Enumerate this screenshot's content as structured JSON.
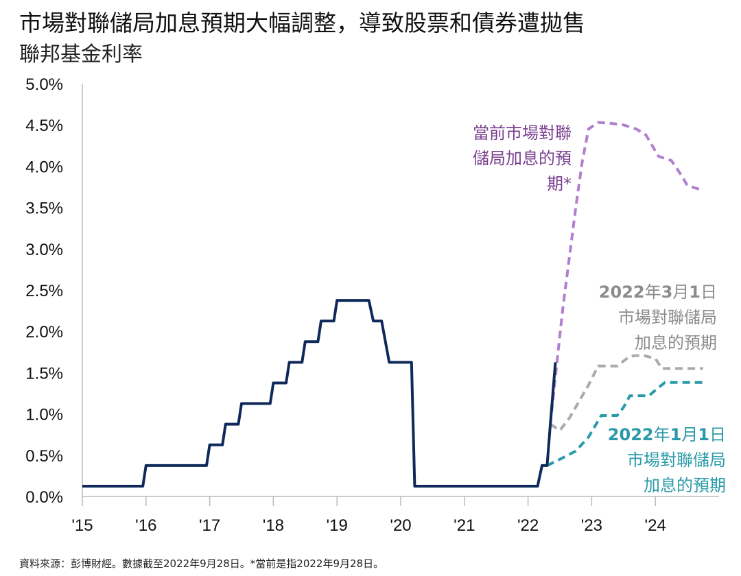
{
  "title": "市場對聯儲局加息預期大幅調整，導致股票和債券遭拋售",
  "subtitle": "聯邦基金利率",
  "source": "資料來源：彭博財經。數據截至2022年9月28日。*當前是指2022年9月28日。",
  "colors": {
    "actual": "#0f2a5a",
    "current_expectation": "#b07fd0",
    "mar_expectation": "#aaaaaa",
    "jan_expectation": "#2a9aa8",
    "axis": "#bbbbbb"
  },
  "chart_data": {
    "type": "line",
    "x_unit": "year",
    "xlim": [
      2015,
      2025
    ],
    "ylim": [
      0,
      5
    ],
    "y_ticks": [
      0,
      0.5,
      1,
      1.5,
      2,
      2.5,
      3,
      3.5,
      4,
      4.5,
      5
    ],
    "y_tick_labels": [
      "0.0%",
      "0.5%",
      "1.0%",
      "1.5%",
      "2.0%",
      "2.5%",
      "3.0%",
      "3.5%",
      "4.0%",
      "4.5%",
      "5.0%"
    ],
    "x_ticks": [
      2015,
      2016,
      2017,
      2018,
      2019,
      2020,
      2021,
      2022,
      2023,
      2024
    ],
    "x_tick_labels": [
      "'15",
      "'16",
      "'17",
      "'18",
      "'19",
      "'20",
      "'21",
      "'22",
      "'23",
      "'24"
    ],
    "grid": false,
    "series": [
      {
        "id": "actual",
        "style": "solid",
        "points": [
          [
            2015.0,
            0.125
          ],
          [
            2015.95,
            0.125
          ],
          [
            2016.0,
            0.375
          ],
          [
            2016.95,
            0.375
          ],
          [
            2017.0,
            0.625
          ],
          [
            2017.2,
            0.625
          ],
          [
            2017.25,
            0.875
          ],
          [
            2017.45,
            0.875
          ],
          [
            2017.5,
            1.125
          ],
          [
            2017.95,
            1.125
          ],
          [
            2018.0,
            1.375
          ],
          [
            2018.2,
            1.375
          ],
          [
            2018.25,
            1.625
          ],
          [
            2018.45,
            1.625
          ],
          [
            2018.5,
            1.875
          ],
          [
            2018.7,
            1.875
          ],
          [
            2018.75,
            2.125
          ],
          [
            2018.95,
            2.125
          ],
          [
            2019.0,
            2.375
          ],
          [
            2019.5,
            2.375
          ],
          [
            2019.57,
            2.125
          ],
          [
            2019.7,
            2.125
          ],
          [
            2019.82,
            1.625
          ],
          [
            2020.17,
            1.625
          ],
          [
            2020.22,
            0.125
          ],
          [
            2022.15,
            0.125
          ],
          [
            2022.22,
            0.375
          ],
          [
            2022.3,
            0.375
          ],
          [
            2022.35,
            0.875
          ],
          [
            2022.43,
            1.625
          ]
        ]
      },
      {
        "id": "current",
        "name": "當前市場對聯儲局加息的預期*",
        "style": "dashed",
        "points": [
          [
            2022.35,
            0.875
          ],
          [
            2022.45,
            1.6
          ],
          [
            2022.55,
            2.3
          ],
          [
            2022.65,
            2.9
          ],
          [
            2022.75,
            3.5
          ],
          [
            2022.85,
            4.05
          ],
          [
            2022.95,
            4.45
          ],
          [
            2023.1,
            4.53
          ],
          [
            2023.3,
            4.52
          ],
          [
            2023.5,
            4.5
          ],
          [
            2023.7,
            4.45
          ],
          [
            2023.85,
            4.38
          ],
          [
            2024.05,
            4.12
          ],
          [
            2024.25,
            4.07
          ],
          [
            2024.4,
            3.9
          ],
          [
            2024.5,
            3.77
          ],
          [
            2024.65,
            3.73
          ],
          [
            2024.75,
            3.71
          ]
        ]
      },
      {
        "id": "mar",
        "name": "2022年3月1日市場對聯儲局加息的預期",
        "style": "dashed",
        "points": [
          [
            2022.35,
            0.875
          ],
          [
            2022.5,
            0.8
          ],
          [
            2022.65,
            0.95
          ],
          [
            2022.8,
            1.15
          ],
          [
            2022.95,
            1.35
          ],
          [
            2023.1,
            1.58
          ],
          [
            2023.4,
            1.58
          ],
          [
            2023.6,
            1.7
          ],
          [
            2023.8,
            1.71
          ],
          [
            2024.0,
            1.67
          ],
          [
            2024.1,
            1.55
          ],
          [
            2024.75,
            1.55
          ]
        ]
      },
      {
        "id": "jan",
        "name": "2022年1月1日市場對聯儲局加息的預期",
        "style": "dashed",
        "points": [
          [
            2022.3,
            0.375
          ],
          [
            2022.5,
            0.45
          ],
          [
            2022.75,
            0.55
          ],
          [
            2022.95,
            0.72
          ],
          [
            2023.15,
            0.98
          ],
          [
            2023.4,
            0.98
          ],
          [
            2023.5,
            1.08
          ],
          [
            2023.6,
            1.22
          ],
          [
            2023.9,
            1.22
          ],
          [
            2024.05,
            1.32
          ],
          [
            2024.15,
            1.38
          ],
          [
            2024.75,
            1.38
          ]
        ]
      }
    ],
    "annotations": {
      "current": [
        "當前市場對聯",
        "儲局加息的預",
        "期*"
      ],
      "mar": {
        "parts": [
          [
            "2022",
            true
          ],
          [
            "年",
            false
          ],
          [
            "3",
            true
          ],
          [
            "月",
            false
          ],
          [
            "1",
            true
          ],
          [
            "日",
            false
          ]
        ],
        "lines": [
          "市場對聯儲局",
          "加息的預期"
        ]
      },
      "jan": {
        "parts": [
          [
            "2022",
            true
          ],
          [
            "年",
            false
          ],
          [
            "1",
            true
          ],
          [
            "月",
            false
          ],
          [
            "1",
            true
          ],
          [
            "日",
            false
          ]
        ],
        "lines": [
          "市場對聯儲局",
          "加息的預期"
        ]
      }
    }
  }
}
